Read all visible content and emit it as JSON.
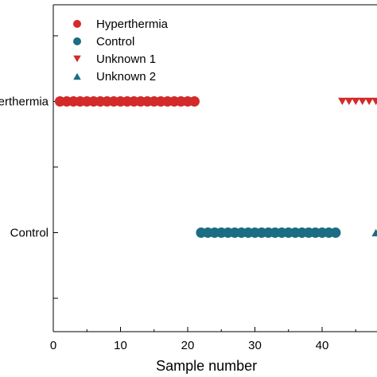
{
  "chart_data": {
    "type": "scatter",
    "title": "",
    "xlabel": "Sample number",
    "ylabel": "",
    "xlim": [
      0,
      48
    ],
    "x_ticks": [
      0,
      10,
      20,
      30,
      40
    ],
    "y_categories": [
      "",
      "Hyperthermia",
      "",
      "Control",
      ""
    ],
    "y_tick_labels": [
      "Hyperthermia",
      "Control"
    ],
    "grid": false,
    "legend_position": "top-left",
    "series": [
      {
        "name": "Hyperthermia",
        "marker": "circle",
        "color": "#d32a2a",
        "category": "Hyperthermia",
        "x": [
          1,
          2,
          3,
          4,
          5,
          6,
          7,
          8,
          9,
          10,
          11,
          12,
          13,
          14,
          15,
          16,
          17,
          18,
          19,
          20,
          21
        ]
      },
      {
        "name": "Control",
        "marker": "circle",
        "color": "#1a6d82",
        "category": "Control",
        "x": [
          22,
          23,
          24,
          25,
          26,
          27,
          28,
          29,
          30,
          31,
          32,
          33,
          34,
          35,
          36,
          37,
          38,
          39,
          40,
          41,
          42
        ]
      },
      {
        "name": "Unknown 1",
        "marker": "triangle-down",
        "color": "#d32a2a",
        "category": "Hyperthermia",
        "x": [
          43,
          44,
          45,
          46,
          47,
          48
        ]
      },
      {
        "name": "Unknown 2",
        "marker": "triangle-up",
        "color": "#1a6d82",
        "category": "Control",
        "x": [
          48
        ]
      }
    ]
  }
}
